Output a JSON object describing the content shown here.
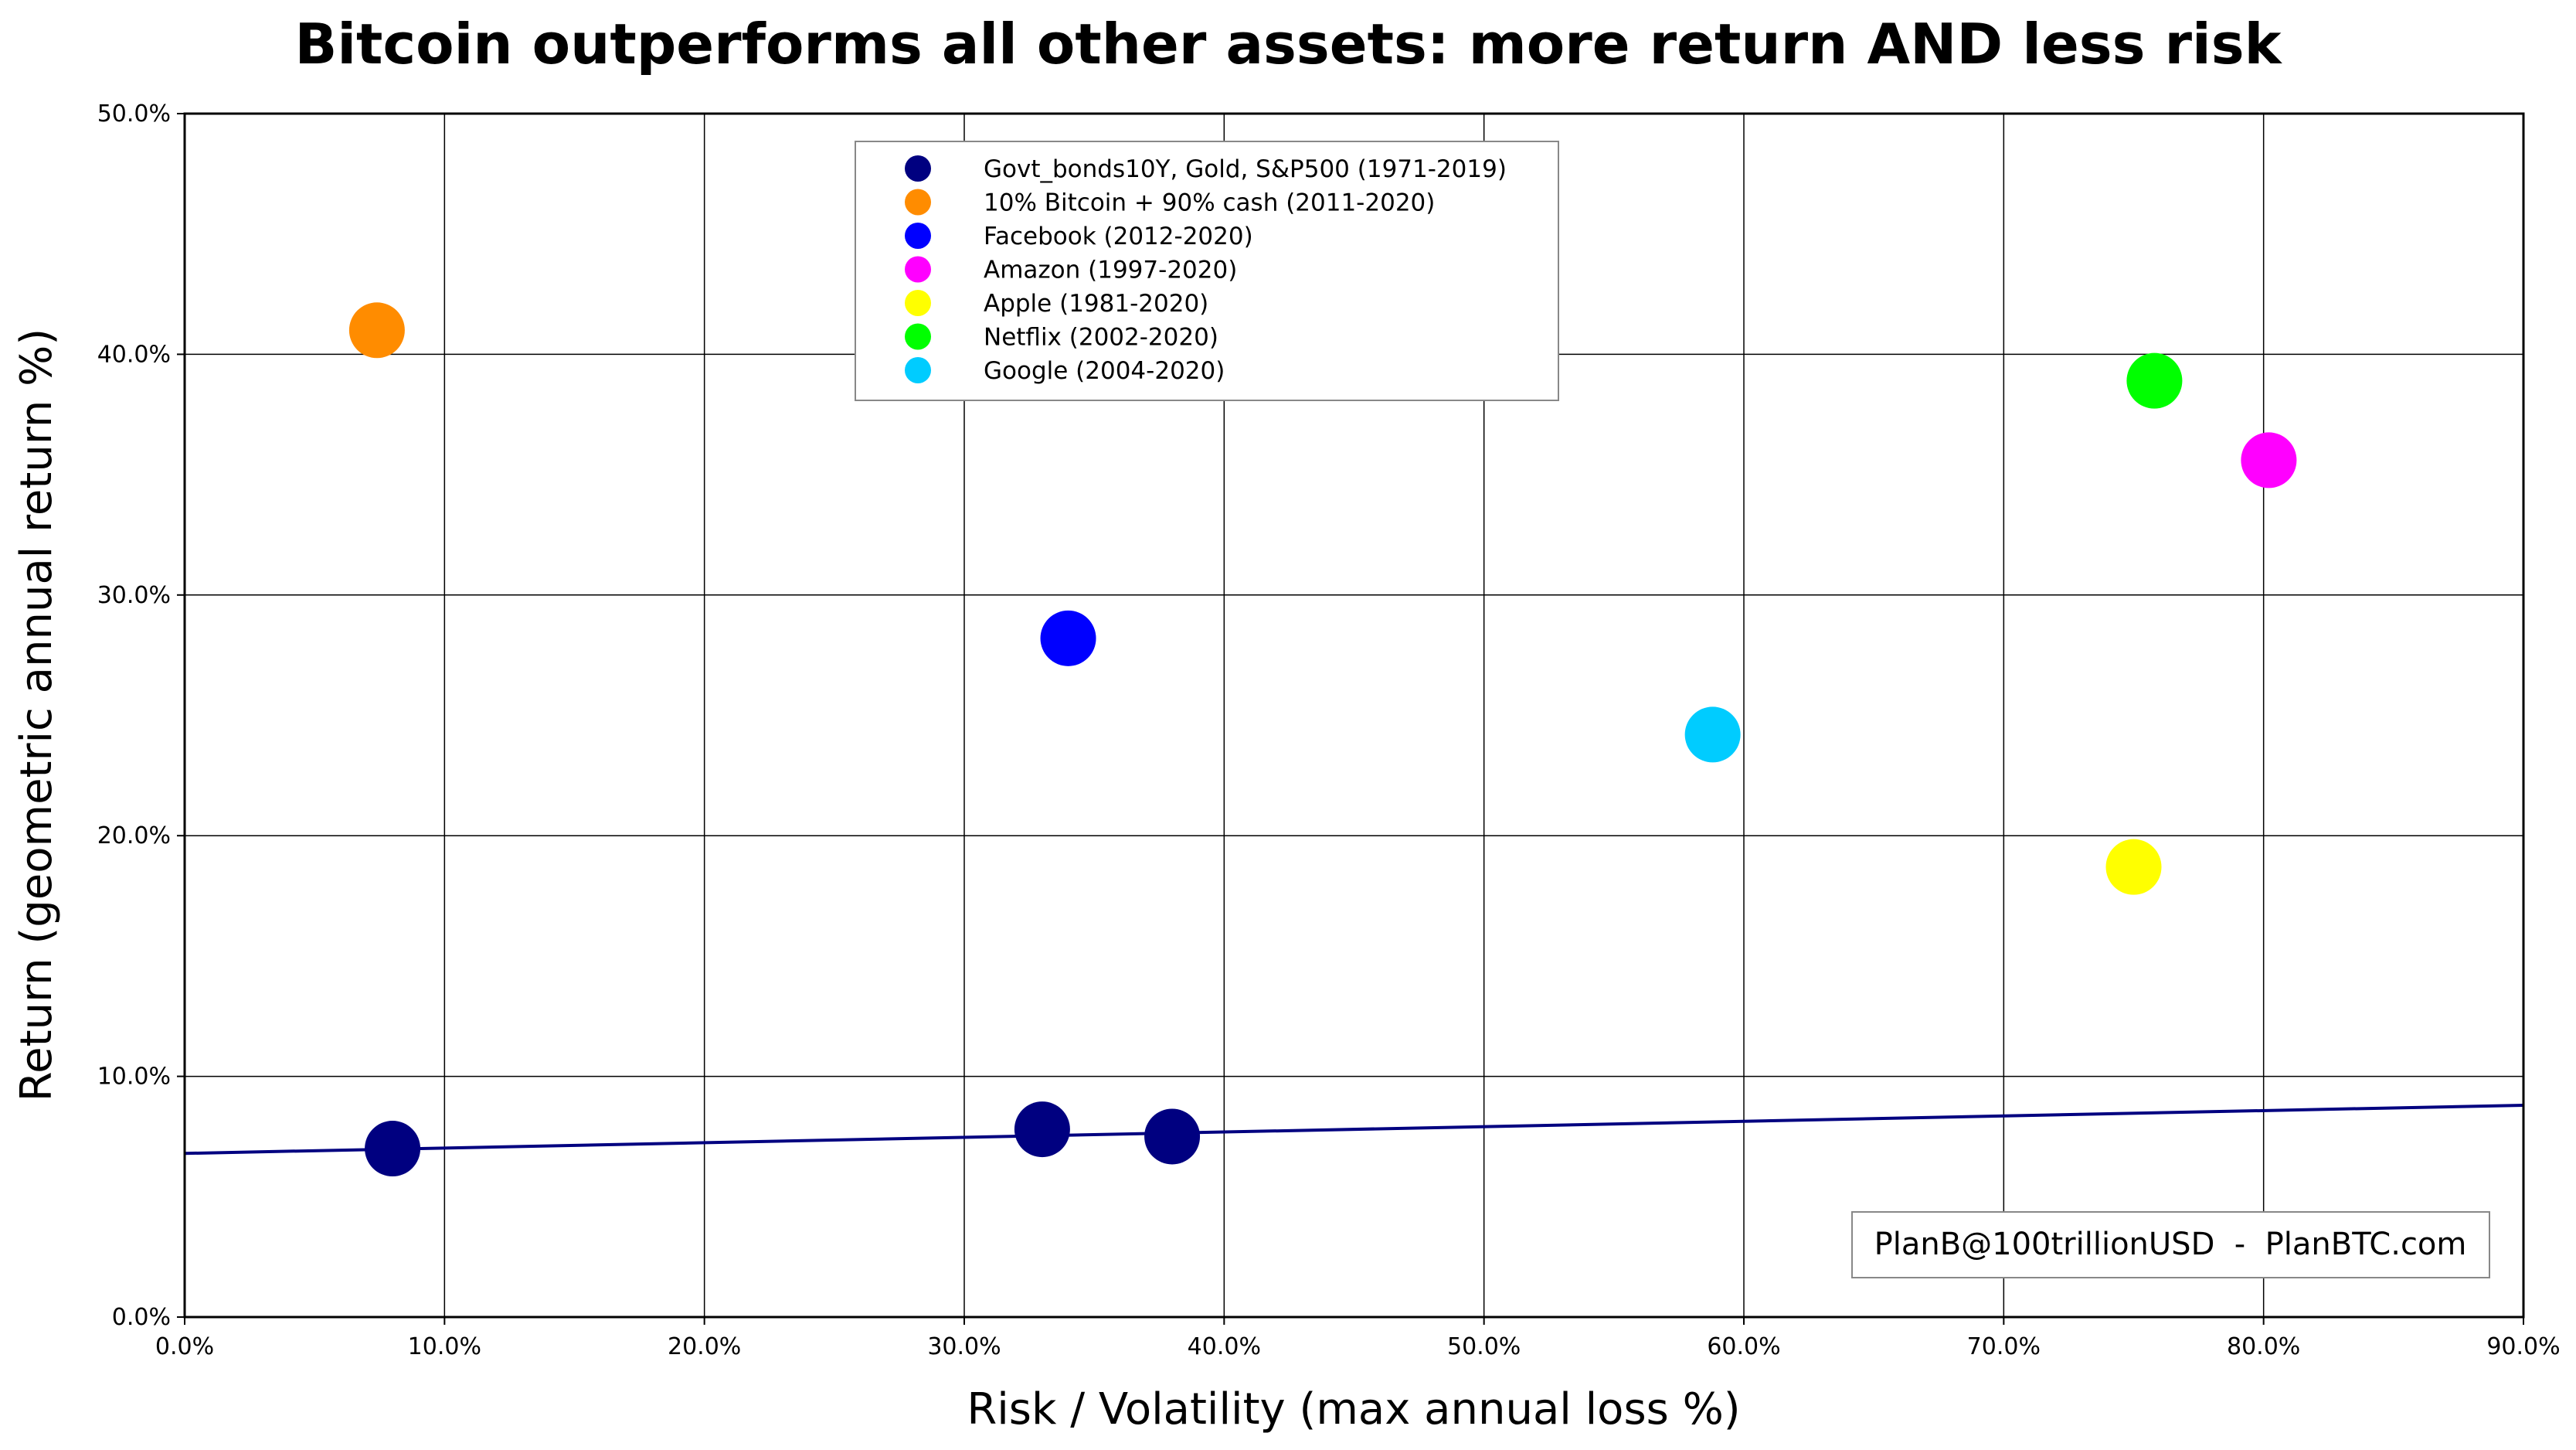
{
  "chart_data": {
    "type": "scatter",
    "title": "Bitcoin outperforms all other assets: more return AND less risk",
    "xlabel": "Risk / Volatility (max annual loss %)",
    "ylabel": "Return (geometric annual return %)",
    "xlim": [
      0,
      90
    ],
    "ylim": [
      0,
      50
    ],
    "x_ticks": [
      "0.0%",
      "10.0%",
      "20.0%",
      "30.0%",
      "40.0%",
      "50.0%",
      "60.0%",
      "70.0%",
      "80.0%",
      "90.0%"
    ],
    "y_ticks": [
      "0.0%",
      "10.0%",
      "20.0%",
      "30.0%",
      "40.0%",
      "50.0%"
    ],
    "grid": true,
    "legend_position": "top-center",
    "series": [
      {
        "name": "Govt_bonds10Y, Gold, S&P500 (1971-2019)",
        "color": "#000080",
        "points": [
          {
            "x": 8.0,
            "y": 7.0
          },
          {
            "x": 33.0,
            "y": 7.8
          },
          {
            "x": 38.0,
            "y": 7.5
          }
        ]
      },
      {
        "name": "10% Bitcoin + 90% cash (2011-2020)",
        "color": "#ff8c00",
        "points": [
          {
            "x": 7.4,
            "y": 41.0
          }
        ]
      },
      {
        "name": "Facebook (2012-2020)",
        "color": "#0000ff",
        "points": [
          {
            "x": 34.0,
            "y": 28.2
          }
        ]
      },
      {
        "name": "Amazon (1997-2020)",
        "color": "#ff00ff",
        "points": [
          {
            "x": 80.2,
            "y": 35.6
          }
        ]
      },
      {
        "name": "Apple (1981-2020)",
        "color": "#ffff00",
        "points": [
          {
            "x": 75.0,
            "y": 18.7
          }
        ]
      },
      {
        "name": "Netflix (2002-2020)",
        "color": "#00ff00",
        "points": [
          {
            "x": 75.8,
            "y": 38.9
          }
        ]
      },
      {
        "name": "Google (2004-2020)",
        "color": "#00ccff",
        "points": [
          {
            "x": 58.8,
            "y": 24.2
          }
        ]
      }
    ],
    "trendline": {
      "color": "#000080",
      "x": [
        0,
        90
      ],
      "y": [
        6.8,
        8.8
      ]
    },
    "annotation": "PlanB@100trillionUSD  -  PlanBTC.com"
  }
}
